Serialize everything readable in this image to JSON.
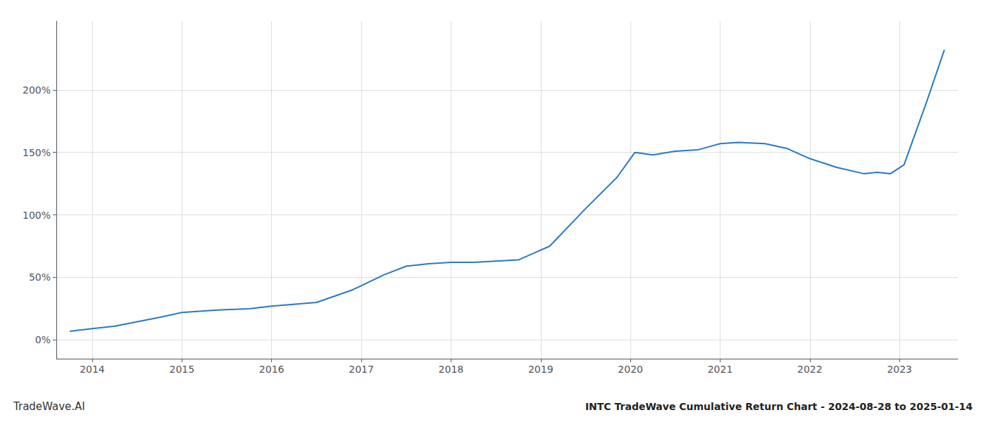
{
  "chart_data": {
    "type": "line",
    "title": "INTC TradeWave Cumulative Return Chart - 2024-08-28 to 2025-01-14",
    "annotations": [
      "TradeWave.AI"
    ],
    "x": [
      2013.75,
      2014.0,
      2014.25,
      2014.75,
      2015.0,
      2015.4,
      2015.75,
      2016.0,
      2016.5,
      2016.9,
      2017.25,
      2017.5,
      2017.75,
      2018.0,
      2018.25,
      2018.5,
      2018.75,
      2019.1,
      2019.5,
      2019.85,
      2020.05,
      2020.25,
      2020.5,
      2020.75,
      2021.0,
      2021.2,
      2021.5,
      2021.75,
      2022.0,
      2022.3,
      2022.6,
      2022.75,
      2022.9,
      2023.05,
      2023.3,
      2023.5
    ],
    "values": [
      7,
      9,
      11,
      18,
      22,
      24,
      25,
      27,
      30,
      40,
      52,
      59,
      61,
      62,
      62,
      63,
      64,
      75,
      105,
      130,
      150,
      148,
      151,
      152,
      157,
      158,
      157,
      153,
      145,
      138,
      133,
      134,
      133,
      140,
      190,
      232
    ],
    "color": "#2878c8",
    "xlim": [
      2013.6,
      2023.65
    ],
    "xticks": [
      2014,
      2015,
      2016,
      2017,
      2018,
      2019,
      2020,
      2021,
      2022,
      2023
    ],
    "ylim": [
      -15,
      255
    ],
    "yticks": [
      {
        "value": 0,
        "label": "0%"
      },
      {
        "value": 50,
        "label": "50%"
      },
      {
        "value": 100,
        "label": "100%"
      },
      {
        "value": 150,
        "label": "150%"
      },
      {
        "value": 200,
        "label": "200%"
      }
    ],
    "grid": true
  }
}
